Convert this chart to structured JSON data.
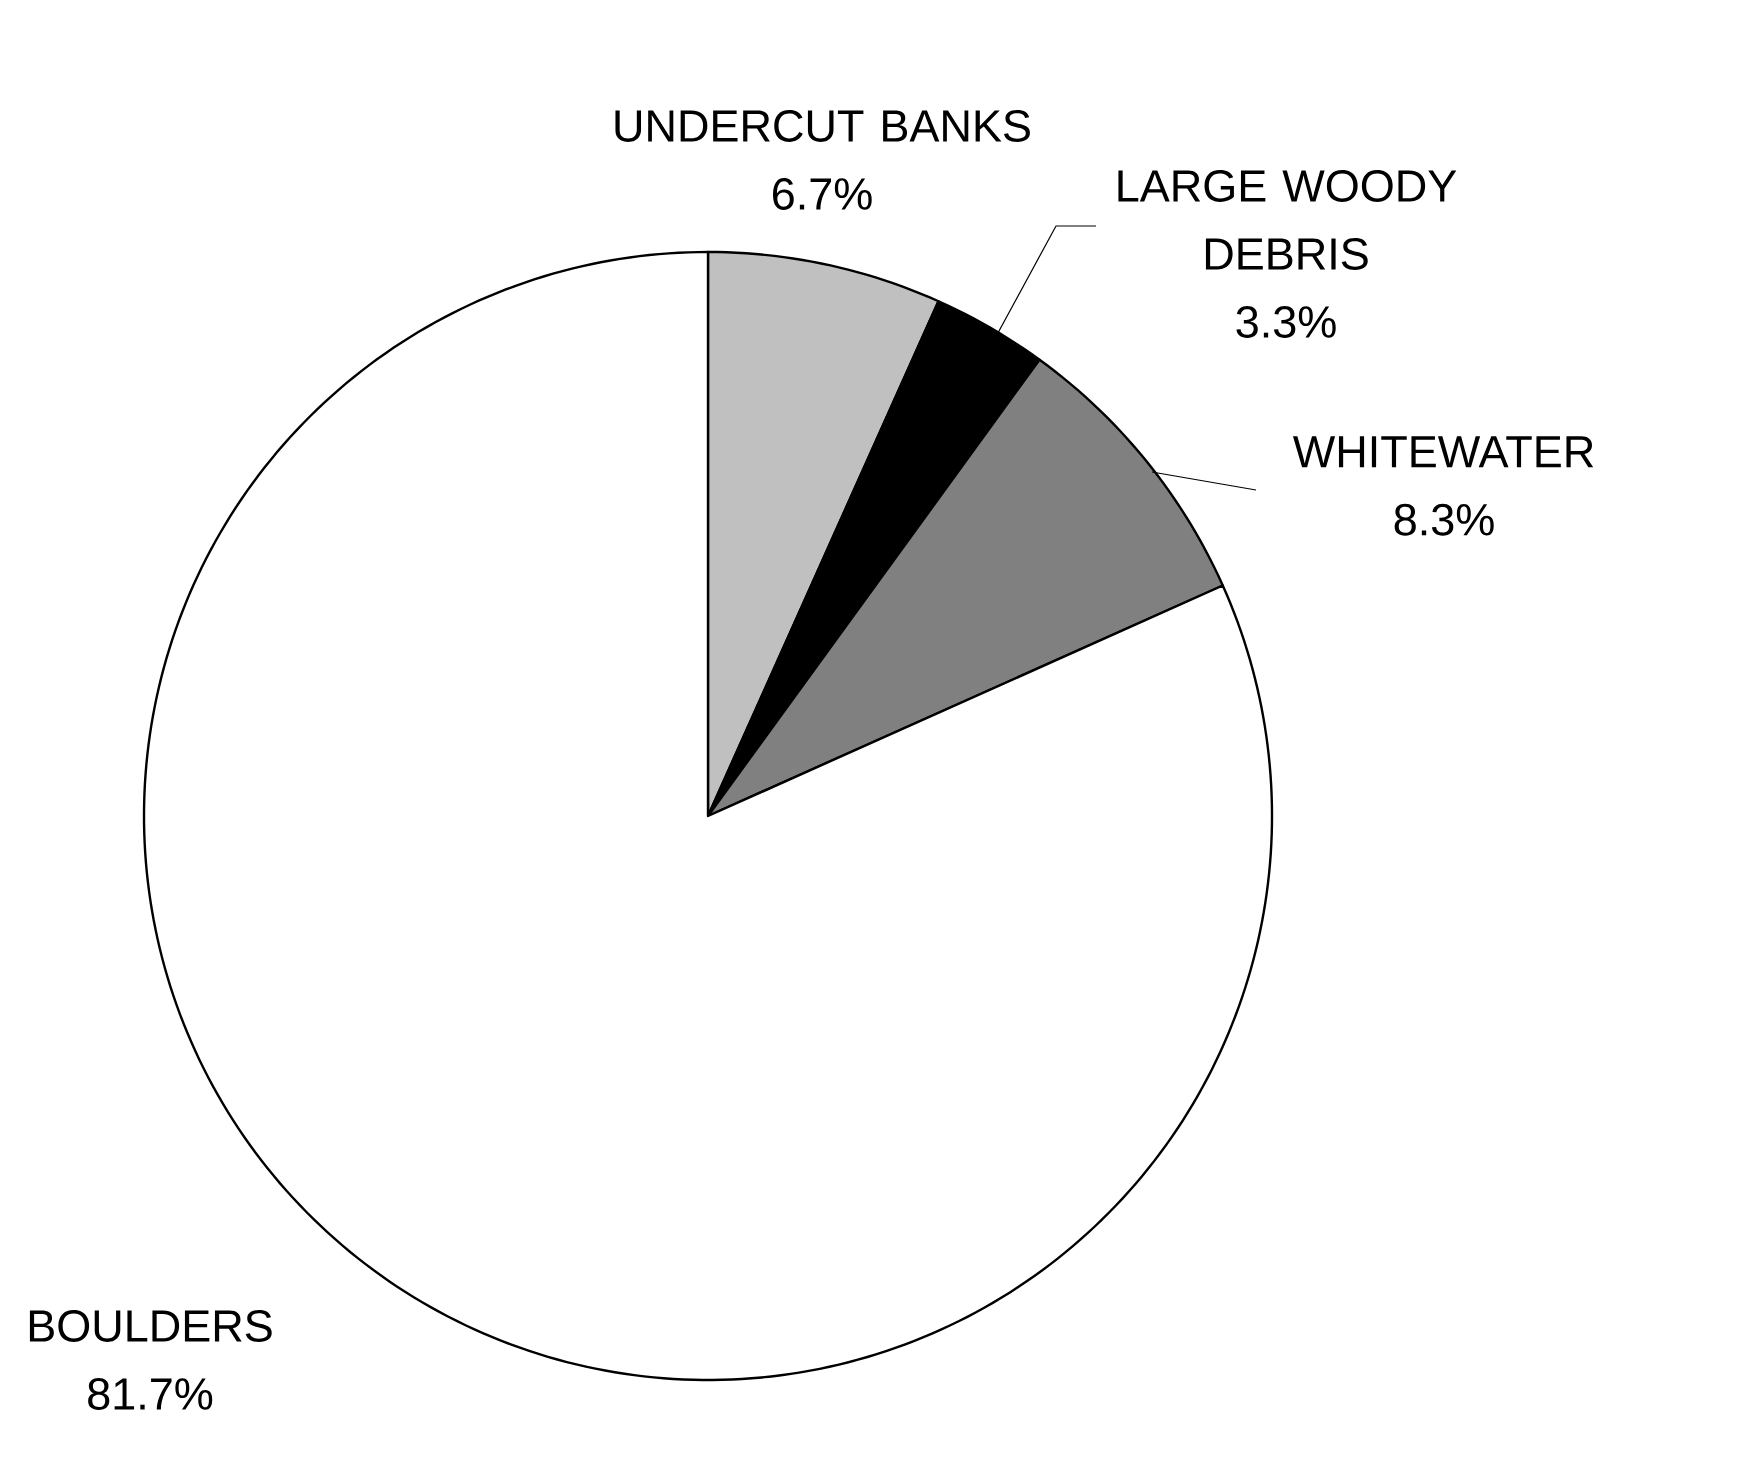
{
  "chart_data": {
    "type": "pie",
    "categories": [
      "UNDERCUT BANKS",
      "LARGE WOODY DEBRIS",
      "WHITEWATER",
      "BOULDERS"
    ],
    "values": [
      6.7,
      3.3,
      8.3,
      81.7
    ],
    "value_labels": [
      "6.7%",
      "3.3%",
      "8.3%",
      "81.7%"
    ],
    "colors": [
      "#c0c0c0",
      "#000000",
      "#808080",
      "#ffffff"
    ]
  }
}
